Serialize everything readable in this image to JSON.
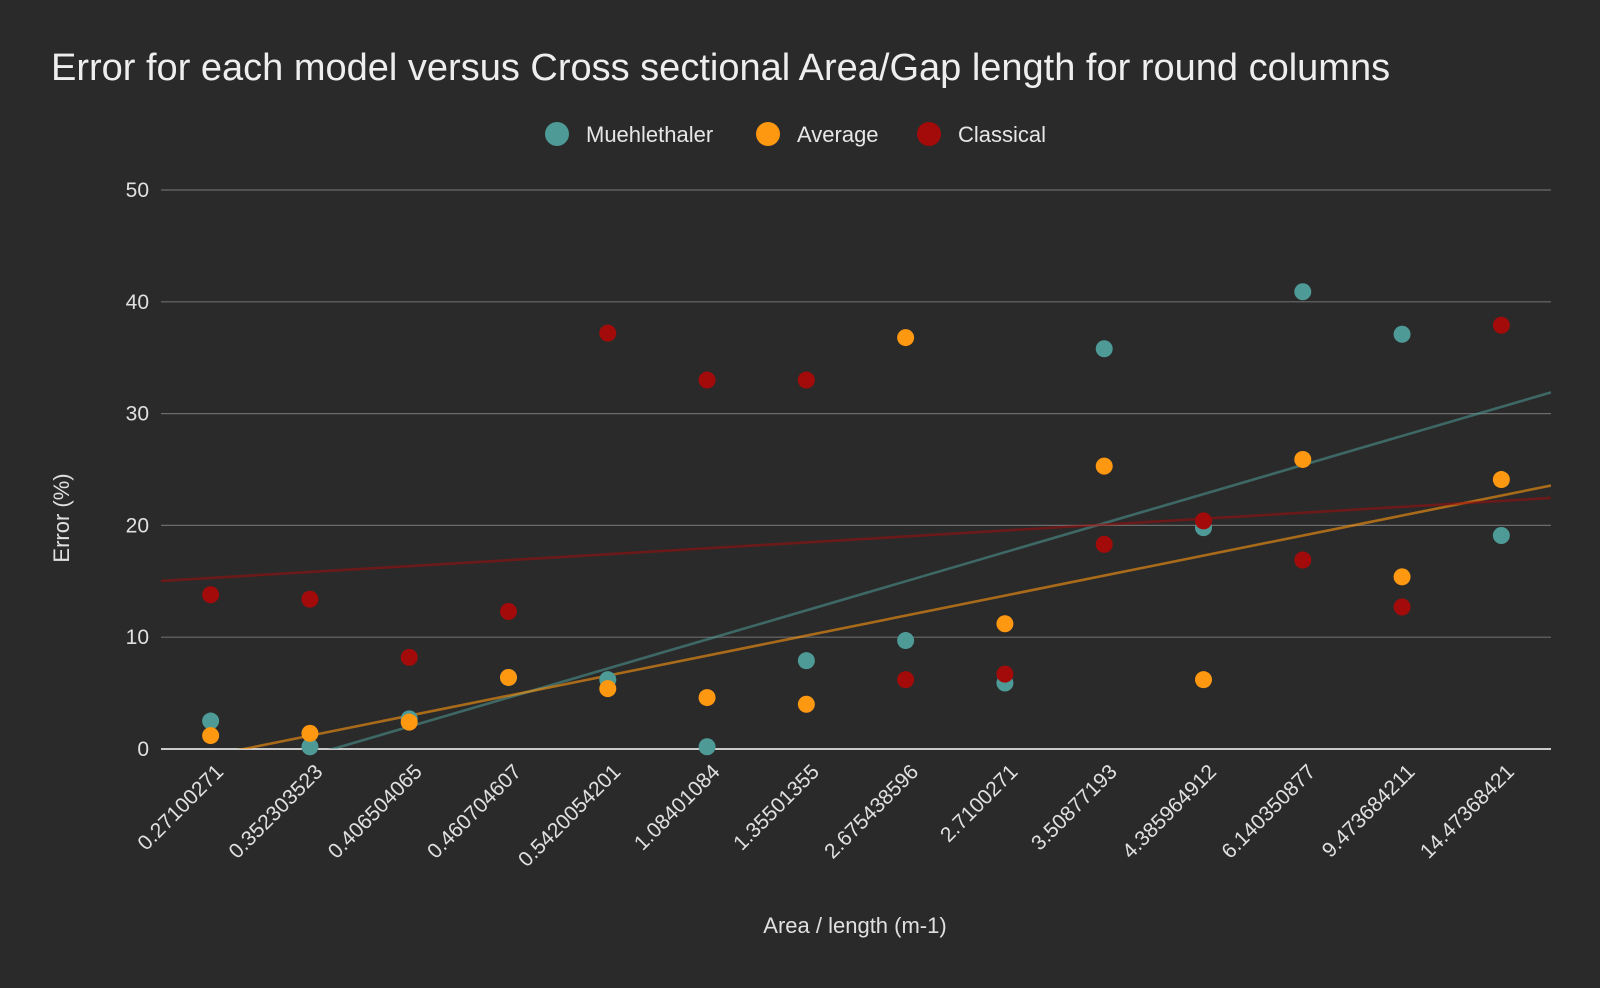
{
  "chart_data": {
    "type": "scatter",
    "title": "Error for each model versus Cross sectional Area/Gap length for round columns",
    "xlabel": "Area / length (m-1)",
    "ylabel": "Error (%)",
    "ylim": [
      0,
      50
    ],
    "yticks": [
      "0",
      "10",
      "20",
      "30",
      "40",
      "50"
    ],
    "grid": true,
    "legend_position": "top",
    "categories": [
      "0.27100271",
      "0.352303523",
      "0.406504065",
      "0.460704607",
      "0.5420054201",
      "1.08401084",
      "1.35501355",
      "2.675438596",
      "2.7100271",
      "3.50877193",
      "4.385964912",
      "6.140350877",
      "9.473684211",
      "14.47368421"
    ],
    "series": [
      {
        "name": "Muehlethaler",
        "color": "#4e9a96",
        "values": [
          2.5,
          0.2,
          2.7,
          6.4,
          6.2,
          0.2,
          7.9,
          9.7,
          5.9,
          35.8,
          19.8,
          40.9,
          37.1,
          19.1
        ],
        "trendline": [
          -3.2,
          2.6
        ]
      },
      {
        "name": "Average",
        "color": "#ff9811",
        "values": [
          1.2,
          1.4,
          2.4,
          6.4,
          5.4,
          4.6,
          4.0,
          36.8,
          11.2,
          25.3,
          6.2,
          25.9,
          15.4,
          24.1
        ],
        "trendline": [
          -0.6,
          1.79
        ]
      },
      {
        "name": "Classical",
        "color": "#a30b0b",
        "values": [
          13.8,
          13.4,
          8.2,
          12.3,
          37.2,
          33.0,
          33.0,
          6.2,
          6.7,
          18.3,
          20.4,
          16.9,
          12.7,
          37.9
        ],
        "trendline": [
          15.3,
          0.53
        ]
      }
    ]
  }
}
